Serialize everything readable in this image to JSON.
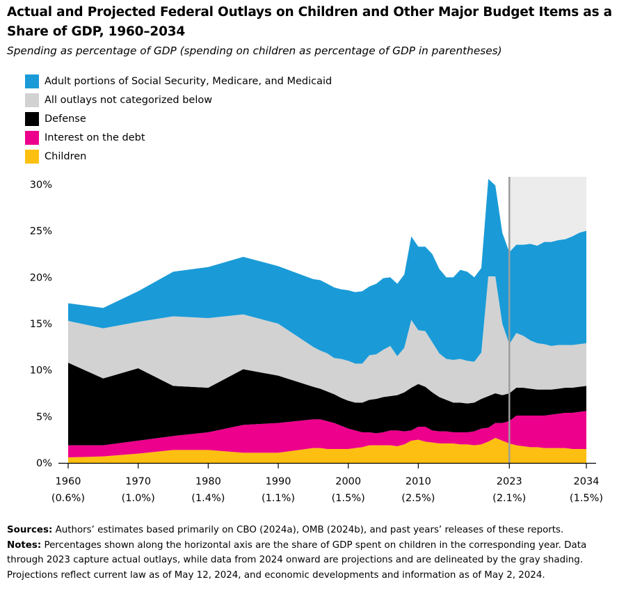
{
  "title": "Actual and Projected Federal Outlays on Children and Other Major Budget Items as a Share of GDP, 1960–2034",
  "subtitle": "Spending as percentage of GDP (spending on children as percentage of GDP in parentheses)",
  "colors": {
    "adult": "#1a9bd7",
    "other": "#d2d2d2",
    "defense": "#000000",
    "interest": "#ec008c",
    "children": "#fdbf11",
    "projection_shade": "#ececec",
    "divider": "#9d9d9d"
  },
  "chart_data": {
    "type": "area",
    "stacked": true,
    "x": [
      1960,
      1965,
      1970,
      1975,
      1980,
      1985,
      1990,
      1995,
      1996,
      1997,
      1998,
      1999,
      2000,
      2001,
      2002,
      2003,
      2004,
      2005,
      2006,
      2007,
      2008,
      2009,
      2010,
      2011,
      2012,
      2013,
      2014,
      2015,
      2016,
      2017,
      2018,
      2019,
      2020,
      2021,
      2022,
      2023,
      2024,
      2025,
      2026,
      2027,
      2028,
      2029,
      2030,
      2031,
      2032,
      2033,
      2034
    ],
    "series": [
      {
        "name": "Children",
        "color_key": "children",
        "values": [
          0.6,
          0.7,
          1.0,
          1.4,
          1.4,
          1.1,
          1.1,
          1.6,
          1.6,
          1.5,
          1.5,
          1.5,
          1.5,
          1.6,
          1.7,
          1.9,
          1.9,
          1.9,
          1.9,
          1.8,
          2.0,
          2.4,
          2.5,
          2.3,
          2.2,
          2.1,
          2.1,
          2.1,
          2.0,
          2.0,
          1.9,
          2.0,
          2.3,
          2.7,
          2.4,
          2.1,
          1.9,
          1.8,
          1.7,
          1.7,
          1.6,
          1.6,
          1.6,
          1.6,
          1.5,
          1.5,
          1.5
        ]
      },
      {
        "name": "Interest on the debt",
        "color_key": "interest",
        "values": [
          1.3,
          1.2,
          1.4,
          1.5,
          1.9,
          3.0,
          3.2,
          3.1,
          3.1,
          3.0,
          2.8,
          2.5,
          2.2,
          1.9,
          1.6,
          1.4,
          1.3,
          1.4,
          1.6,
          1.7,
          1.4,
          1.1,
          1.4,
          1.6,
          1.3,
          1.3,
          1.3,
          1.2,
          1.3,
          1.3,
          1.5,
          1.7,
          1.5,
          1.6,
          1.9,
          2.4,
          3.2,
          3.3,
          3.4,
          3.4,
          3.5,
          3.6,
          3.7,
          3.8,
          3.9,
          4.0,
          4.1
        ]
      },
      {
        "name": "Defense",
        "color_key": "defense",
        "values": [
          8.9,
          7.2,
          7.8,
          5.4,
          4.8,
          6.0,
          5.1,
          3.5,
          3.3,
          3.2,
          3.1,
          3.0,
          3.0,
          3.0,
          3.2,
          3.5,
          3.7,
          3.8,
          3.7,
          3.8,
          4.2,
          4.6,
          4.6,
          4.3,
          4.1,
          3.7,
          3.4,
          3.2,
          3.2,
          3.1,
          3.1,
          3.2,
          3.4,
          3.2,
          3.0,
          3.0,
          3.0,
          3.0,
          2.9,
          2.8,
          2.8,
          2.7,
          2.7,
          2.7,
          2.7,
          2.7,
          2.7
        ]
      },
      {
        "name": "All outlays not categorized below",
        "color_key": "other",
        "values": [
          4.5,
          5.4,
          5.0,
          7.5,
          7.5,
          5.9,
          5.6,
          4.3,
          4.1,
          4.1,
          3.9,
          4.2,
          4.3,
          4.2,
          4.2,
          4.8,
          4.8,
          5.1,
          5.4,
          4.2,
          4.8,
          7.3,
          5.8,
          6.0,
          5.4,
          4.7,
          4.4,
          4.6,
          4.7,
          4.6,
          4.4,
          5.0,
          12.9,
          12.6,
          7.7,
          5.3,
          5.9,
          5.6,
          5.2,
          5.0,
          4.9,
          4.7,
          4.7,
          4.6,
          4.6,
          4.6,
          4.6
        ]
      },
      {
        "name": "Adult portions of Social Security, Medicare, and Medicaid",
        "color_key": "adult",
        "values": [
          1.9,
          2.2,
          3.3,
          4.8,
          5.5,
          6.2,
          6.2,
          7.3,
          7.6,
          7.5,
          7.6,
          7.5,
          7.6,
          7.7,
          7.8,
          7.4,
          7.6,
          7.7,
          7.4,
          7.8,
          7.9,
          9.0,
          9.0,
          9.1,
          9.5,
          9.1,
          8.8,
          8.9,
          9.6,
          9.6,
          9.1,
          9.1,
          10.5,
          9.8,
          9.8,
          9.9,
          9.5,
          9.8,
          10.4,
          10.5,
          11.0,
          11.2,
          11.3,
          11.4,
          11.7,
          12.0,
          12.1
        ]
      }
    ],
    "ylim": [
      0,
      30
    ],
    "y_ticks": [
      0,
      5,
      10,
      15,
      20,
      25,
      30
    ],
    "y_tick_labels": [
      "0%",
      "5%",
      "10%",
      "15%",
      "20%",
      "25%",
      "30%"
    ],
    "xlim": [
      1960,
      2034
    ],
    "x_ticks": [
      {
        "year": 1960,
        "label": "1960",
        "sub": "(0.6%)"
      },
      {
        "year": 1970,
        "label": "1970",
        "sub": "(1.0%)"
      },
      {
        "year": 1980,
        "label": "1980",
        "sub": "(1.4%)"
      },
      {
        "year": 1990,
        "label": "1990",
        "sub": "(1.1%)"
      },
      {
        "year": 2000,
        "label": "2000",
        "sub": "(1.5%)"
      },
      {
        "year": 2010,
        "label": "2010",
        "sub": "(2.5%)"
      },
      {
        "year": 2023,
        "label": "2023",
        "sub": "(2.1%)"
      },
      {
        "year": 2034,
        "label": "2034",
        "sub": "(1.5%)"
      }
    ],
    "projection_start": 2023,
    "projection_end": 2034
  },
  "legend": [
    {
      "label": "Adult portions of Social Security, Medicare, and Medicaid",
      "color_key": "adult"
    },
    {
      "label": "All outlays not categorized below",
      "color_key": "other"
    },
    {
      "label": "Defense",
      "color_key": "defense"
    },
    {
      "label": "Interest on the debt",
      "color_key": "interest"
    },
    {
      "label": "Children",
      "color_key": "children"
    }
  ],
  "footer": {
    "sources_label": "Sources:",
    "sources_text": " Authors’ estimates based primarily on CBO (2024a), OMB (2024b), and past years’ releases of these reports.",
    "notes_label": "Notes:",
    "notes_text": " Percentages shown along the horizontal axis are the share of GDP spent on children in the corresponding year. Data through 2023 capture actual outlays, while data from 2024 onward are projections and are delineated by the gray shading. Projections reflect current law as of May 12, 2024, and economic developments and information as of May 2, 2024."
  }
}
